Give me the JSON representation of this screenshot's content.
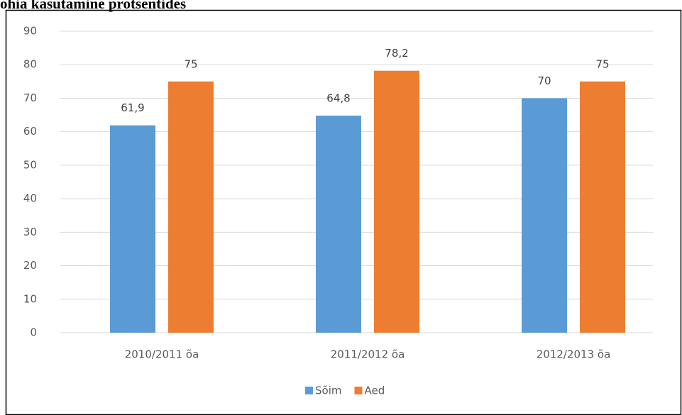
{
  "chart_data": {
    "type": "bar",
    "title": "ohia kasutamine protsentides",
    "categories": [
      "2010/2011 õa",
      "2011/2012 õa",
      "2012/2013 õa"
    ],
    "series": [
      {
        "name": "Sõim",
        "color": "#5b9bd5",
        "values": [
          61.9,
          64.8,
          70
        ],
        "value_labels": [
          "61,9",
          "64,8",
          "70"
        ]
      },
      {
        "name": "Aed",
        "color": "#ed7d31",
        "values": [
          75,
          78.2,
          75
        ],
        "value_labels": [
          "75",
          "78,2",
          "75"
        ]
      }
    ],
    "ylim": [
      0,
      90
    ],
    "yticks": [
      0,
      10,
      20,
      30,
      40,
      50,
      60,
      70,
      80,
      90
    ],
    "grid": true,
    "legend": "bottom"
  }
}
